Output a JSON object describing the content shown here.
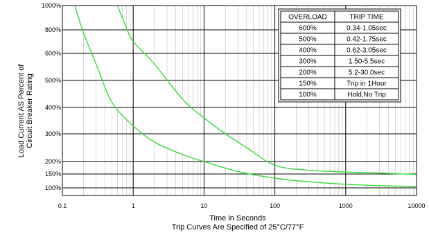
{
  "chart_data": {
    "type": "line",
    "title": "",
    "xlabel": "Time in Seconds",
    "ylabel_line1": "Load Current AS Percent of",
    "ylabel_line2": "Circuit Breaker Rating",
    "caption": "Trip Curves Are Specified of 25°C/77°F",
    "x_scale": "log",
    "xlim": [
      0.1,
      10000
    ],
    "x_ticks": [
      {
        "value": 0.1,
        "label": "0.1"
      },
      {
        "value": 1,
        "label": "1"
      },
      {
        "value": 10,
        "label": "10"
      },
      {
        "value": 100,
        "label": "100"
      },
      {
        "value": 1000,
        "label": "1000"
      },
      {
        "value": 10000,
        "label": "10000"
      }
    ],
    "y_ticks": [
      {
        "value": 100,
        "label": "100%"
      },
      {
        "value": 150,
        "label": "150%"
      },
      {
        "value": 200,
        "label": "200%"
      },
      {
        "value": 300,
        "label": "300%"
      },
      {
        "value": 400,
        "label": "400%"
      },
      {
        "value": 500,
        "label": "500%"
      },
      {
        "value": 600,
        "label": "600%"
      },
      {
        "value": 800,
        "label": "800%"
      },
      {
        "value": 1000,
        "label": "1000%"
      }
    ],
    "grid": true,
    "band_color": "#ffffff",
    "curve_color": "#33dd33",
    "series": [
      {
        "points": [
          [
            0.15,
            1000
          ],
          [
            0.2,
            770
          ],
          [
            0.3,
            560
          ],
          [
            0.5,
            420
          ],
          [
            1,
            330
          ],
          [
            2,
            270
          ],
          [
            5,
            225
          ],
          [
            10,
            200
          ],
          [
            30,
            160
          ],
          [
            100,
            135
          ],
          [
            300,
            122
          ],
          [
            1000,
            113
          ],
          [
            3000,
            108
          ],
          [
            10000,
            105
          ]
        ]
      },
      {
        "points": [
          [
            0.6,
            1000
          ],
          [
            0.8,
            820
          ],
          [
            1,
            700
          ],
          [
            2,
            560
          ],
          [
            5,
            430
          ],
          [
            10,
            360
          ],
          [
            20,
            300
          ],
          [
            40,
            250
          ],
          [
            100,
            185
          ],
          [
            300,
            165
          ],
          [
            1000,
            158
          ],
          [
            3000,
            154
          ],
          [
            10000,
            148
          ]
        ]
      }
    ],
    "table": {
      "headers": [
        "OVERLOAD",
        "TRIP TIME"
      ],
      "rows": [
        [
          "600%",
          "0.34-1.05sec"
        ],
        [
          "500%",
          "0.42-1.75sec"
        ],
        [
          "400%",
          "0.62-3.05sec"
        ],
        [
          "300%",
          "1.50-5.5sec"
        ],
        [
          "200%",
          "5.2-30.0sec"
        ],
        [
          "150%",
          "Trip in 1Hour"
        ],
        [
          "100%",
          "Hold,No Trip"
        ]
      ]
    }
  }
}
